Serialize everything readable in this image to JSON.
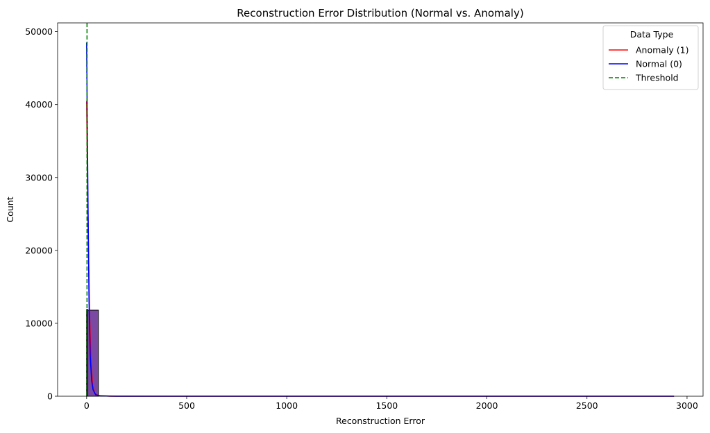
{
  "chart_data": {
    "type": "histogram",
    "title": "Reconstruction Error Distribution (Normal vs. Anomaly)",
    "xlabel": "Reconstruction Error",
    "ylabel": "Count",
    "xlim": [
      -145,
      3080
    ],
    "ylim": [
      0,
      51200
    ],
    "xticks": [
      0,
      500,
      1000,
      1500,
      2000,
      2500,
      3000
    ],
    "yticks": [
      0,
      10000,
      20000,
      30000,
      40000,
      50000
    ],
    "grid": false,
    "legend": {
      "title": "Data Type",
      "placement": "top-right",
      "entries": [
        {
          "label": "Anomaly (1)",
          "color": "#ff0000",
          "style": "solid"
        },
        {
          "label": "Normal (0)",
          "color": "#0000ff",
          "style": "solid"
        },
        {
          "label": "Threshold",
          "color": "#008000",
          "style": "dashed"
        }
      ]
    },
    "bars": [
      {
        "name": "overlap",
        "x0": 0,
        "x1": 59,
        "value": 11800,
        "fill": "#7a4aa3",
        "opacity": 1.0
      },
      {
        "name": "narrow",
        "x0": 0,
        "x1": 6,
        "value": 11900,
        "fill": "#5a8f6a",
        "opacity": 0.9
      }
    ],
    "series": [
      {
        "name": "Anomaly (1)",
        "color": "#ff0000",
        "points": [
          [
            0,
            40500
          ],
          [
            3,
            33000
          ],
          [
            8,
            22000
          ],
          [
            15,
            11000
          ],
          [
            22,
            4500
          ],
          [
            30,
            1500
          ],
          [
            40,
            400
          ],
          [
            60,
            80
          ],
          [
            120,
            10
          ],
          [
            300,
            0
          ],
          [
            2935,
            0
          ]
        ]
      },
      {
        "name": "Normal (0)",
        "color": "#0000ff",
        "points": [
          [
            0,
            48500
          ],
          [
            3,
            38000
          ],
          [
            7,
            26000
          ],
          [
            12,
            13000
          ],
          [
            18,
            5500
          ],
          [
            25,
            2200
          ],
          [
            32,
            900
          ],
          [
            45,
            200
          ],
          [
            70,
            40
          ],
          [
            150,
            5
          ],
          [
            400,
            0
          ],
          [
            2935,
            0
          ]
        ]
      }
    ],
    "threshold": {
      "name": "Threshold",
      "x": 2,
      "color": "#008000"
    }
  }
}
